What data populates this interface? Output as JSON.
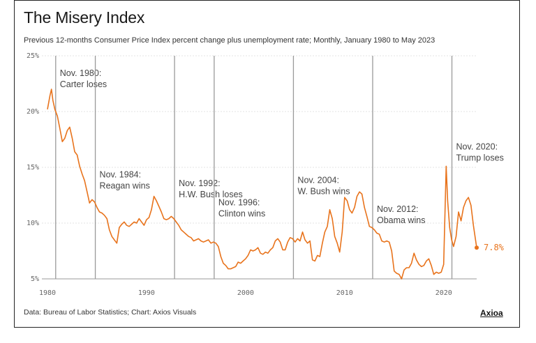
{
  "header": {
    "title": "The Misery Index",
    "subtitle": "Previous 12-months Consumer Price Index percent change plus unemployment rate; Monthly, January 1980 to May 2023"
  },
  "footer": {
    "source": "Data: Bureau of Labor Statistics; Chart: Axios Visuals",
    "logo": "Axioa"
  },
  "chart_data": {
    "type": "line",
    "title": "The Misery Index",
    "subtitle": "Previous 12-months Consumer Price Index percent change plus unemployment rate; Monthly, January 1980 to May 2023",
    "xlabel": "",
    "ylabel": "",
    "xlim": [
      1980,
      2023.4
    ],
    "ylim": [
      5,
      25
    ],
    "grid": true,
    "legend": "none",
    "line_color": "#e8731c",
    "event_line_color": "#9a9a9a",
    "y_ticks": [
      {
        "value": 25,
        "label": "25%"
      },
      {
        "value": 20,
        "label": "20%"
      },
      {
        "value": 15,
        "label": "15%"
      },
      {
        "value": 10,
        "label": "10%"
      },
      {
        "value": 5,
        "label": "5%"
      }
    ],
    "x_ticks": [
      {
        "value": 1980,
        "label": "1980"
      },
      {
        "value": 1990,
        "label": "1990"
      },
      {
        "value": 2000,
        "label": "2000"
      },
      {
        "value": 2010,
        "label": "2010"
      },
      {
        "value": 2020,
        "label": "2020"
      }
    ],
    "end_label": {
      "x": 2023.33,
      "y": 7.8,
      "label": "7.8%"
    },
    "events": [
      {
        "x": 1980.83,
        "line1": "Nov. 1980:",
        "line2": "Carter loses",
        "label_y": 23.2
      },
      {
        "x": 1984.83,
        "line1": "Nov. 1984:",
        "line2": "Reagan wins",
        "label_y": 14.1
      },
      {
        "x": 1992.83,
        "line1": "Nov. 1992:",
        "line2": "H.W. Bush loses",
        "label_y": 13.3
      },
      {
        "x": 1996.83,
        "line1": "Nov. 1996:",
        "line2": "Clinton wins",
        "label_y": 11.6
      },
      {
        "x": 2004.83,
        "line1": "Nov. 2004:",
        "line2": "W. Bush wins",
        "label_y": 13.6
      },
      {
        "x": 2012.83,
        "line1": "Nov. 2012:",
        "line2": "Obama wins",
        "label_y": 11.0
      },
      {
        "x": 2020.83,
        "line1": "Nov. 2020:",
        "line2": "Trump loses",
        "label_y": 16.6
      }
    ],
    "series": [
      {
        "values": [
          [
            1980.0,
            20.2
          ],
          [
            1980.25,
            21.4
          ],
          [
            1980.4,
            22.0
          ],
          [
            1980.55,
            21.0
          ],
          [
            1980.75,
            20.2
          ],
          [
            1981.0,
            19.6
          ],
          [
            1981.25,
            18.5
          ],
          [
            1981.5,
            17.3
          ],
          [
            1981.75,
            17.6
          ],
          [
            1982.0,
            18.3
          ],
          [
            1982.25,
            18.6
          ],
          [
            1982.5,
            17.6
          ],
          [
            1982.75,
            16.4
          ],
          [
            1983.0,
            16.1
          ],
          [
            1983.25,
            15.1
          ],
          [
            1983.5,
            14.4
          ],
          [
            1983.75,
            13.8
          ],
          [
            1984.0,
            12.8
          ],
          [
            1984.25,
            11.8
          ],
          [
            1984.5,
            12.1
          ],
          [
            1984.75,
            11.9
          ],
          [
            1985.0,
            11.4
          ],
          [
            1985.25,
            11.0
          ],
          [
            1985.5,
            10.9
          ],
          [
            1985.75,
            10.7
          ],
          [
            1986.0,
            10.4
          ],
          [
            1986.25,
            9.4
          ],
          [
            1986.5,
            8.8
          ],
          [
            1986.75,
            8.5
          ],
          [
            1987.0,
            8.2
          ],
          [
            1987.25,
            9.6
          ],
          [
            1987.5,
            9.9
          ],
          [
            1987.75,
            10.1
          ],
          [
            1988.0,
            9.8
          ],
          [
            1988.25,
            9.7
          ],
          [
            1988.5,
            9.9
          ],
          [
            1988.75,
            10.1
          ],
          [
            1989.0,
            10.0
          ],
          [
            1989.25,
            10.4
          ],
          [
            1989.5,
            10.1
          ],
          [
            1989.75,
            9.8
          ],
          [
            1990.0,
            10.3
          ],
          [
            1990.25,
            10.5
          ],
          [
            1990.5,
            11.2
          ],
          [
            1990.75,
            12.4
          ],
          [
            1991.0,
            12.0
          ],
          [
            1991.25,
            11.5
          ],
          [
            1991.5,
            11.0
          ],
          [
            1991.75,
            10.4
          ],
          [
            1992.0,
            10.3
          ],
          [
            1992.25,
            10.4
          ],
          [
            1992.5,
            10.6
          ],
          [
            1992.75,
            10.4
          ],
          [
            1993.0,
            10.1
          ],
          [
            1993.25,
            9.8
          ],
          [
            1993.5,
            9.4
          ],
          [
            1993.75,
            9.2
          ],
          [
            1994.0,
            9.0
          ],
          [
            1994.25,
            8.8
          ],
          [
            1994.5,
            8.7
          ],
          [
            1994.75,
            8.4
          ],
          [
            1995.0,
            8.5
          ],
          [
            1995.25,
            8.6
          ],
          [
            1995.5,
            8.4
          ],
          [
            1995.75,
            8.3
          ],
          [
            1996.0,
            8.4
          ],
          [
            1996.25,
            8.5
          ],
          [
            1996.5,
            8.2
          ],
          [
            1996.75,
            8.3
          ],
          [
            1997.0,
            8.2
          ],
          [
            1997.25,
            7.9
          ],
          [
            1997.5,
            7.0
          ],
          [
            1997.75,
            6.4
          ],
          [
            1998.0,
            6.2
          ],
          [
            1998.25,
            5.9
          ],
          [
            1998.5,
            5.9
          ],
          [
            1998.75,
            6.0
          ],
          [
            1999.0,
            6.1
          ],
          [
            1999.25,
            6.5
          ],
          [
            1999.5,
            6.4
          ],
          [
            1999.75,
            6.6
          ],
          [
            2000.0,
            6.8
          ],
          [
            2000.25,
            7.1
          ],
          [
            2000.5,
            7.6
          ],
          [
            2000.75,
            7.5
          ],
          [
            2001.0,
            7.6
          ],
          [
            2001.25,
            7.8
          ],
          [
            2001.5,
            7.3
          ],
          [
            2001.75,
            7.2
          ],
          [
            2002.0,
            7.4
          ],
          [
            2002.25,
            7.3
          ],
          [
            2002.5,
            7.6
          ],
          [
            2002.75,
            7.8
          ],
          [
            2003.0,
            8.4
          ],
          [
            2003.25,
            8.6
          ],
          [
            2003.5,
            8.3
          ],
          [
            2003.75,
            7.6
          ],
          [
            2004.0,
            7.6
          ],
          [
            2004.25,
            8.3
          ],
          [
            2004.5,
            8.7
          ],
          [
            2004.75,
            8.6
          ],
          [
            2005.0,
            8.3
          ],
          [
            2005.25,
            8.6
          ],
          [
            2005.5,
            8.4
          ],
          [
            2005.75,
            9.2
          ],
          [
            2006.0,
            8.5
          ],
          [
            2006.25,
            8.2
          ],
          [
            2006.5,
            8.4
          ],
          [
            2006.75,
            6.7
          ],
          [
            2007.0,
            6.6
          ],
          [
            2007.25,
            7.1
          ],
          [
            2007.5,
            7.0
          ],
          [
            2007.75,
            8.2
          ],
          [
            2008.0,
            9.2
          ],
          [
            2008.25,
            9.7
          ],
          [
            2008.5,
            11.2
          ],
          [
            2008.75,
            10.4
          ],
          [
            2009.0,
            8.8
          ],
          [
            2009.25,
            8.2
          ],
          [
            2009.5,
            7.4
          ],
          [
            2009.75,
            9.2
          ],
          [
            2010.0,
            12.3
          ],
          [
            2010.25,
            12.0
          ],
          [
            2010.5,
            11.2
          ],
          [
            2010.75,
            10.9
          ],
          [
            2011.0,
            11.4
          ],
          [
            2011.25,
            12.4
          ],
          [
            2011.5,
            12.8
          ],
          [
            2011.75,
            12.6
          ],
          [
            2012.0,
            11.4
          ],
          [
            2012.25,
            10.6
          ],
          [
            2012.5,
            9.7
          ],
          [
            2012.75,
            9.6
          ],
          [
            2013.0,
            9.4
          ],
          [
            2013.25,
            9.1
          ],
          [
            2013.5,
            9.0
          ],
          [
            2013.75,
            8.4
          ],
          [
            2014.0,
            8.3
          ],
          [
            2014.25,
            8.4
          ],
          [
            2014.5,
            8.3
          ],
          [
            2014.75,
            7.5
          ],
          [
            2015.0,
            5.7
          ],
          [
            2015.25,
            5.5
          ],
          [
            2015.5,
            5.4
          ],
          [
            2015.75,
            5.0
          ],
          [
            2016.0,
            5.8
          ],
          [
            2016.25,
            6.0
          ],
          [
            2016.5,
            6.0
          ],
          [
            2016.75,
            6.4
          ],
          [
            2017.0,
            7.3
          ],
          [
            2017.25,
            6.7
          ],
          [
            2017.5,
            6.3
          ],
          [
            2017.75,
            6.1
          ],
          [
            2018.0,
            6.2
          ],
          [
            2018.25,
            6.6
          ],
          [
            2018.5,
            6.8
          ],
          [
            2018.75,
            6.2
          ],
          [
            2019.0,
            5.4
          ],
          [
            2019.25,
            5.6
          ],
          [
            2019.5,
            5.5
          ],
          [
            2019.75,
            5.6
          ],
          [
            2020.0,
            6.3
          ],
          [
            2020.25,
            15.1
          ],
          [
            2020.4,
            12.0
          ],
          [
            2020.6,
            9.6
          ],
          [
            2020.8,
            8.5
          ],
          [
            2021.0,
            7.9
          ],
          [
            2021.25,
            8.8
          ],
          [
            2021.5,
            11.0
          ],
          [
            2021.75,
            10.2
          ],
          [
            2022.0,
            11.4
          ],
          [
            2022.25,
            12.0
          ],
          [
            2022.5,
            12.3
          ],
          [
            2022.75,
            11.6
          ],
          [
            2023.0,
            9.8
          ],
          [
            2023.33,
            7.8
          ]
        ]
      }
    ]
  }
}
